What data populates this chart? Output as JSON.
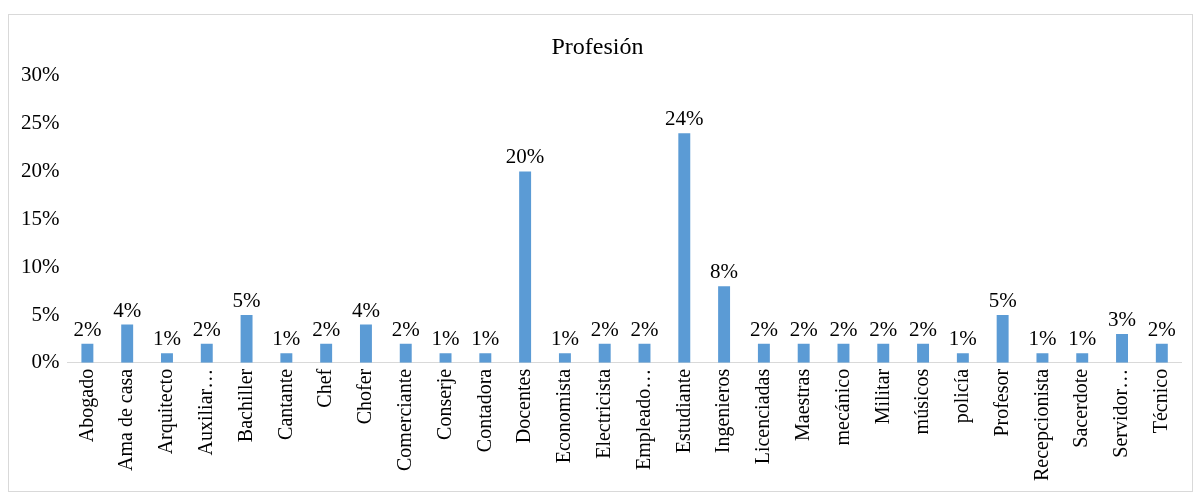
{
  "chart_data": {
    "type": "bar",
    "title": "Profesión",
    "categories": [
      "Abogado",
      "Ama de casa",
      "Arquitecto",
      "Auxiliar…",
      "Bachiller",
      "Cantante",
      "Chef",
      "Chofer",
      "Comerciante",
      "Conserje",
      "Contadora",
      "Docentes",
      "Economista",
      "Electricista",
      "Empleado…",
      "Estudiante",
      "Ingenieros",
      "Licenciadas",
      "Maestras",
      "mecánico",
      "Militar",
      "músicos",
      "policía",
      "Profesor",
      "Recepcionista",
      "Sacerdote",
      "Servidor…",
      "Técnico"
    ],
    "values": [
      2,
      4,
      1,
      2,
      5,
      1,
      2,
      4,
      2,
      1,
      1,
      20,
      1,
      2,
      2,
      24,
      8,
      2,
      2,
      2,
      2,
      2,
      1,
      5,
      1,
      1,
      3,
      2
    ],
    "value_labels": [
      "2%",
      "4%",
      "1%",
      "2%",
      "5%",
      "1%",
      "2%",
      "4%",
      "2%",
      "1%",
      "1%",
      "20%",
      "1%",
      "2%",
      "2%",
      "24%",
      "8%",
      "2%",
      "2%",
      "2%",
      "2%",
      "2%",
      "1%",
      "5%",
      "1%",
      "1%",
      "3%",
      "2%"
    ],
    "color": "#5b9bd5",
    "ylim": [
      0,
      30
    ],
    "yticks": [
      {
        "value": 0,
        "label": "0%"
      },
      {
        "value": 5,
        "label": "5%"
      },
      {
        "value": 10,
        "label": "10%"
      },
      {
        "value": 15,
        "label": "15%"
      },
      {
        "value": 20,
        "label": "20%"
      },
      {
        "value": 25,
        "label": "25%"
      },
      {
        "value": 30,
        "label": "30%"
      }
    ],
    "grid": false,
    "legend": false
  }
}
